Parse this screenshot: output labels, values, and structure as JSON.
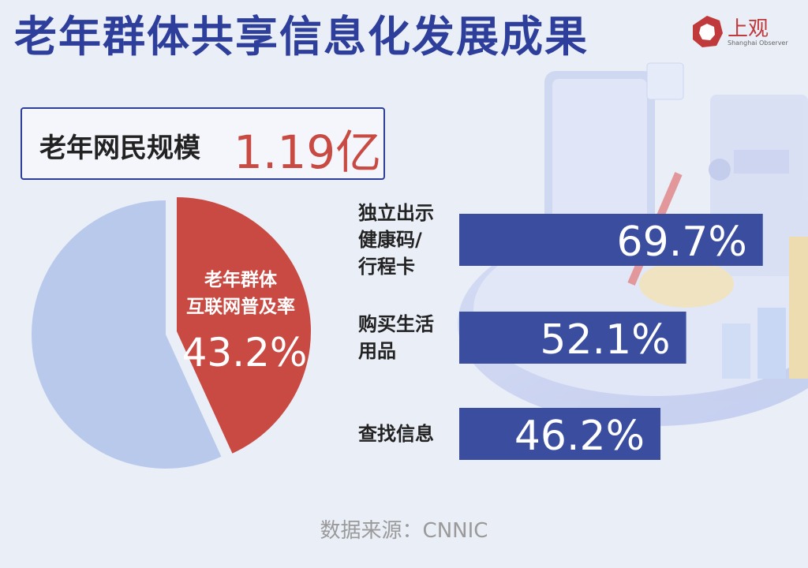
{
  "title": "老年群体共享信息化发展成果",
  "logo": {
    "name": "上观",
    "subtitle": "Shanghai Observer",
    "icon": "shanghai-observer-logo-icon"
  },
  "scale": {
    "label": "老年网民规模",
    "value": "1.19亿"
  },
  "colors": {
    "title": "#2e3e9b",
    "bar": "#3a4d9f",
    "slice_highlight": "#c94a42",
    "slice_rest": "#b9c9ec"
  },
  "source": "数据来源：CNNIC",
  "chart_data": [
    {
      "type": "pie",
      "slices": [
        {
          "label": "老年群体互联网普及率",
          "label_lines": [
            "老年群体",
            "互联网普及率"
          ],
          "value": 43.2,
          "value_label": "43.2%"
        },
        {
          "label": "",
          "value": 56.8
        }
      ]
    },
    {
      "type": "bar",
      "orientation": "horizontal",
      "categories": [
        "独立出示健康码/行程卡",
        "购买生活用品",
        "查找信息"
      ],
      "category_lines": [
        [
          "独立出示",
          "健康码/",
          "行程卡"
        ],
        [
          "购买生活",
          "用品"
        ],
        [
          "查找信息"
        ]
      ],
      "values": [
        69.7,
        52.1,
        46.2
      ],
      "value_labels": [
        "69.7%",
        "52.1%",
        "46.2%"
      ],
      "unit": "%"
    }
  ]
}
